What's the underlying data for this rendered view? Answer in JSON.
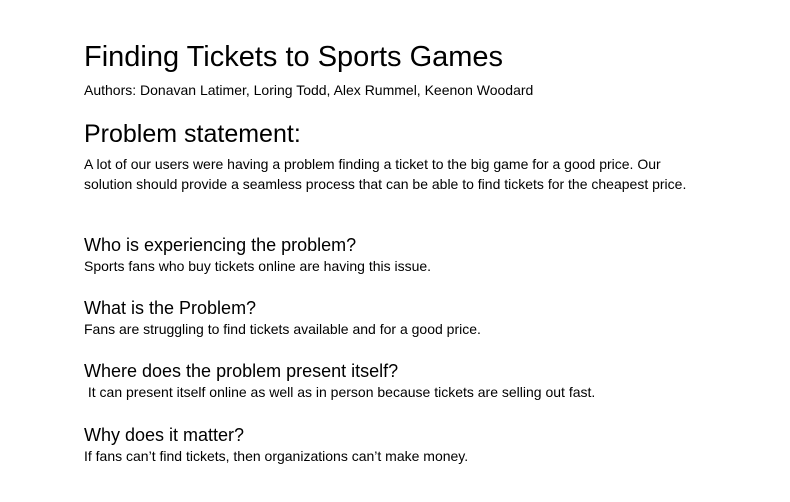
{
  "document": {
    "title": "Finding Tickets to Sports Games",
    "authors": "Authors: Donavan Latimer, Loring Todd, Alex Rummel, Keenon Woodard",
    "problem_heading": "Problem statement:",
    "problem_text": "A lot of our users were having a problem finding a ticket to the big game for a good price. Our solution should provide a seamless process that can be able to find tickets for the cheapest price.",
    "questions": [
      {
        "heading": "Who is experiencing the problem?",
        "answer": "Sports fans who buy tickets online are having this issue."
      },
      {
        "heading": "What is the Problem?",
        "answer": "Fans are struggling to find tickets available and for a good price."
      },
      {
        "heading": "Where does the problem present itself?",
        "answer": " It can present itself online as well as in person because tickets are selling out fast."
      },
      {
        "heading": "Why does it matter?",
        "answer": "If fans can’t find tickets, then organizations can’t make money."
      }
    ]
  }
}
